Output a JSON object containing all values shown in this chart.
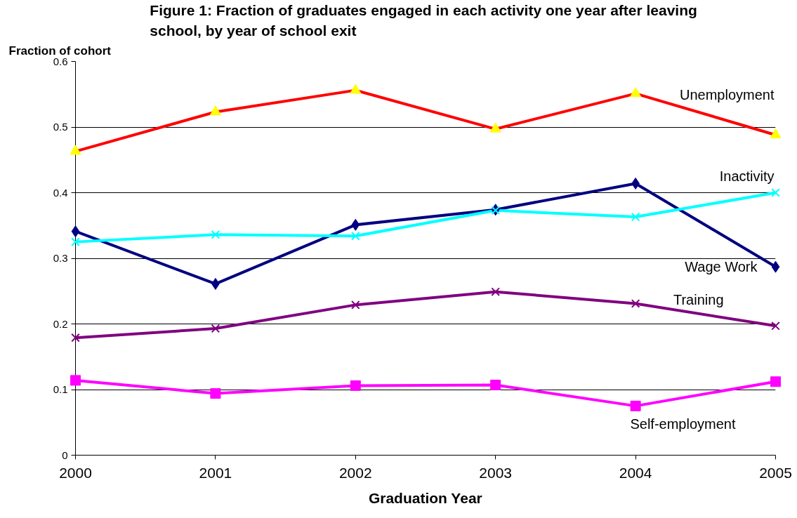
{
  "chart_data": {
    "type": "line",
    "title": "Figure 1:  Fraction of graduates engaged in each activity one year after leaving school, by year of school exit",
    "xlabel": "Graduation Year",
    "ylabel": "Fraction of cohort",
    "x": [
      2000,
      2001,
      2002,
      2003,
      2004,
      2005
    ],
    "xlim": [
      2000,
      2005
    ],
    "xticks": [
      2000,
      2001,
      2002,
      2003,
      2004,
      2005
    ],
    "ylim": [
      0,
      0.6
    ],
    "yticks": [
      0,
      0.1,
      0.2,
      0.3,
      0.4,
      0.5,
      0.6
    ],
    "grid": "y",
    "legend": false,
    "line_style": "solid",
    "series": [
      {
        "name": "Unemployment",
        "color": "#ff0000",
        "colors": [
          "#ffff00",
          "#ffff00",
          "#ffff00",
          "#ffff00",
          "#ffff00",
          "#ffff00"
        ],
        "marker": "triangle",
        "values": [
          0.463,
          0.523,
          0.556,
          0.497,
          0.551,
          0.488
        ]
      },
      {
        "name": "Wage Work",
        "color": "#000080",
        "marker": "diamond",
        "values": [
          0.341,
          0.261,
          0.351,
          0.374,
          0.414,
          0.287
        ]
      },
      {
        "name": "Inactivity",
        "color": "#00ffff",
        "marker": "cross",
        "values": [
          0.325,
          0.336,
          0.334,
          0.373,
          0.363,
          0.4
        ]
      },
      {
        "name": "Training",
        "color": "#800080",
        "marker": "cross",
        "values": [
          0.179,
          0.193,
          0.229,
          0.249,
          0.231,
          0.197
        ]
      },
      {
        "name": "Self-employment",
        "color": "#ff00ff",
        "marker": "square",
        "values": [
          0.114,
          0.094,
          0.106,
          0.107,
          0.075,
          0.112
        ]
      }
    ]
  }
}
